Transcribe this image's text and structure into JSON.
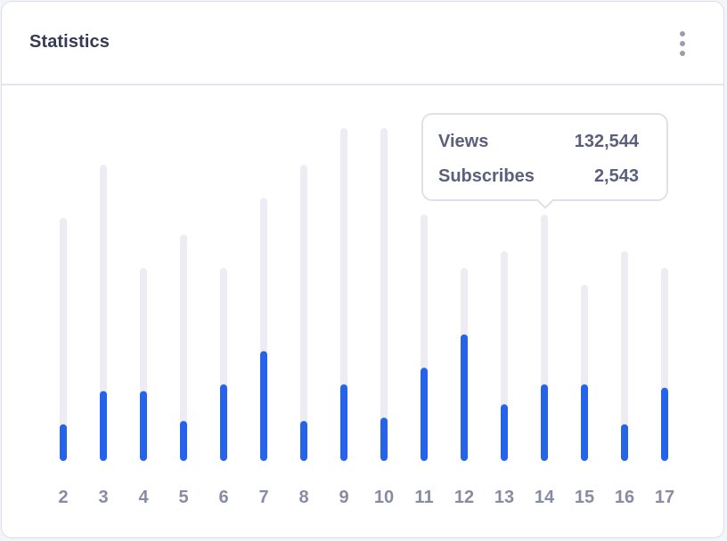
{
  "header": {
    "title": "Statistics",
    "menu_icon": "more-vertical-icon"
  },
  "tooltip": {
    "views_label": "Views",
    "views_value": "132,544",
    "subscribes_label": "Subscribes",
    "subscribes_value": "2,543",
    "category": "14"
  },
  "colors": {
    "bar_track": "#ececf2",
    "bar_fill": "#2563eb",
    "tick_text": "#878ca3"
  },
  "chart_data": {
    "type": "bar",
    "title": "Statistics",
    "xlabel": "",
    "ylabel": "",
    "ylim": [
      0,
      100
    ],
    "categories": [
      "2",
      "3",
      "4",
      "5",
      "6",
      "7",
      "8",
      "9",
      "10",
      "11",
      "12",
      "13",
      "14",
      "15",
      "16",
      "17"
    ],
    "series": [
      {
        "name": "Views",
        "values": [
          73,
          89,
          58,
          68,
          58,
          79,
          89,
          100,
          100,
          74,
          58,
          63,
          74,
          53,
          63,
          58
        ]
      },
      {
        "name": "Subscribes",
        "values": [
          11,
          21,
          21,
          12,
          23,
          33,
          12,
          23,
          13,
          28,
          38,
          17,
          23,
          23,
          11,
          22
        ]
      }
    ]
  }
}
